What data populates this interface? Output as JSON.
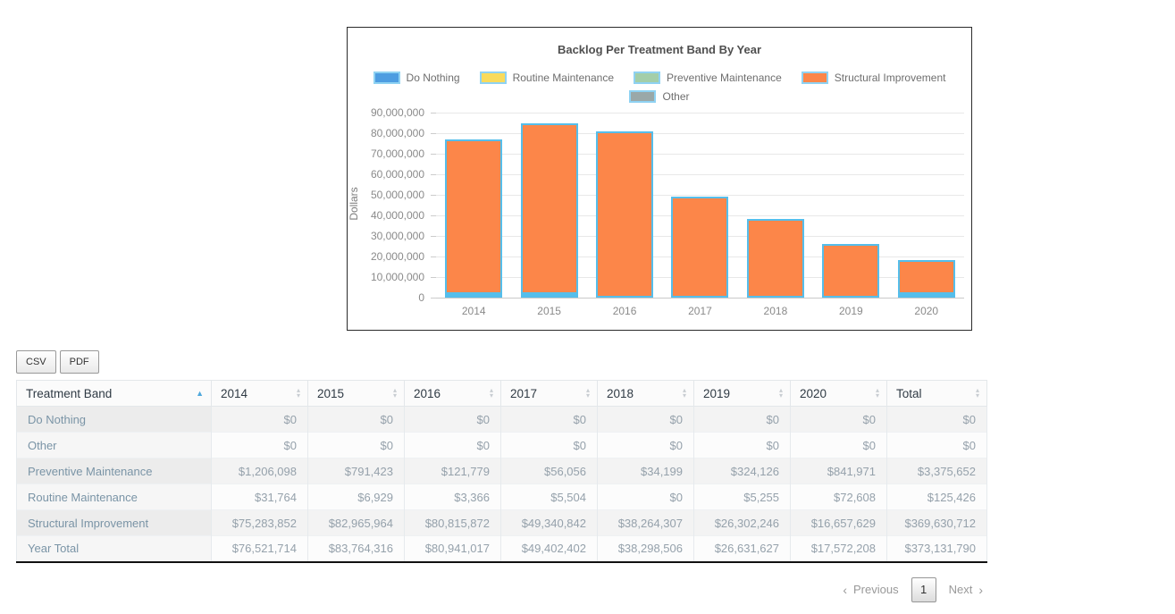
{
  "chart": {
    "title": "Backlog Per Treatment Band By Year",
    "ylabel": "Dollars"
  },
  "chart_data": {
    "type": "bar",
    "stacked": true,
    "title": "Backlog Per Treatment Band By Year",
    "xlabel": "",
    "ylabel": "Dollars",
    "categories": [
      "2014",
      "2015",
      "2016",
      "2017",
      "2018",
      "2019",
      "2020"
    ],
    "series": [
      {
        "name": "Do Nothing",
        "color": "#4d9de1",
        "values": [
          0,
          0,
          0,
          0,
          0,
          0,
          0
        ]
      },
      {
        "name": "Routine Maintenance",
        "color": "#f9db5c",
        "values": [
          31764,
          6929,
          3366,
          5504,
          0,
          5255,
          72608
        ]
      },
      {
        "name": "Preventive Maintenance",
        "color": "#a3cea9",
        "values": [
          1206098,
          791423,
          121779,
          56056,
          34199,
          324126,
          841971
        ]
      },
      {
        "name": "Structural Improvement",
        "color": "#fc8649",
        "values": [
          75283852,
          82965964,
          80815872,
          49340842,
          38264307,
          26302246,
          16657629
        ]
      },
      {
        "name": "Other",
        "color": "#9aa8a8",
        "values": [
          0,
          0,
          0,
          0,
          0,
          0,
          0
        ]
      }
    ],
    "ylim": [
      0,
      90000000
    ],
    "ytick_step": 10000000,
    "grid": true,
    "legend_position": "top"
  },
  "colors": {
    "bar_border": "#55beeb",
    "swatch_border": "#8fd2f2",
    "sorted_arrow": "#4fa8dc",
    "neutral_arrow": "#c8cdd2"
  },
  "toolbar": {
    "csv_label": "CSV",
    "pdf_label": "PDF"
  },
  "table": {
    "columns": [
      "Treatment Band",
      "2014",
      "2015",
      "2016",
      "2017",
      "2018",
      "2019",
      "2020",
      "Total"
    ],
    "sorted_column": "Treatment Band",
    "sort_direction": "asc",
    "rows": [
      {
        "label": "Do Nothing",
        "values": [
          "$0",
          "$0",
          "$0",
          "$0",
          "$0",
          "$0",
          "$0",
          "$0"
        ]
      },
      {
        "label": "Other",
        "values": [
          "$0",
          "$0",
          "$0",
          "$0",
          "$0",
          "$0",
          "$0",
          "$0"
        ]
      },
      {
        "label": "Preventive Maintenance",
        "values": [
          "$1,206,098",
          "$791,423",
          "$121,779",
          "$56,056",
          "$34,199",
          "$324,126",
          "$841,971",
          "$3,375,652"
        ]
      },
      {
        "label": "Routine Maintenance",
        "values": [
          "$31,764",
          "$6,929",
          "$3,366",
          "$5,504",
          "$0",
          "$5,255",
          "$72,608",
          "$125,426"
        ]
      },
      {
        "label": "Structural Improvement",
        "values": [
          "$75,283,852",
          "$82,965,964",
          "$80,815,872",
          "$49,340,842",
          "$38,264,307",
          "$26,302,246",
          "$16,657,629",
          "$369,630,712"
        ]
      },
      {
        "label": "Year Total",
        "values": [
          "$76,521,714",
          "$83,764,316",
          "$80,941,017",
          "$49,402,402",
          "$38,298,506",
          "$26,631,627",
          "$17,572,208",
          "$373,131,790"
        ]
      }
    ]
  },
  "pagination": {
    "prev_chevron": "‹",
    "previous_label": "Previous",
    "page": "1",
    "next_label": "Next",
    "next_chevron": "›"
  }
}
